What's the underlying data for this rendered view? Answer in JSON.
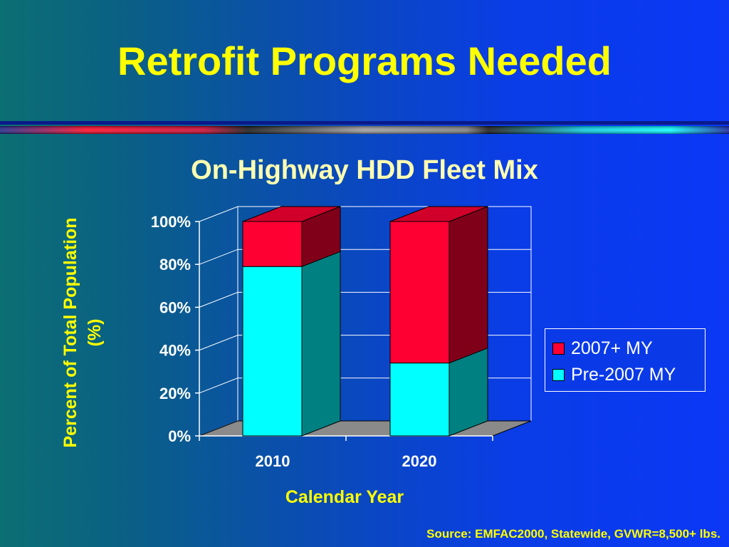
{
  "slide": {
    "title": "Retrofit Programs Needed",
    "source": "Source: EMFAC2000, Statewide, GVWR=8,500+ lbs."
  },
  "colors": {
    "background_left": "#0c6f73",
    "background_right": "#0b37f6",
    "title": "#ffff00",
    "series_2007_plus": "#ff0033",
    "series_pre_2007": "#00ffff",
    "floor": "#8a8a8a",
    "gridline": "#ffffff"
  },
  "chart_data": {
    "type": "bar",
    "stacked": true,
    "three_d": true,
    "title": "On-Highway HDD Fleet Mix",
    "xlabel": "Calendar Year",
    "ylabel": "Percent of Total Population (%)",
    "categories": [
      "2010",
      "2020"
    ],
    "series": [
      {
        "name": "Pre-2007 MY",
        "values": [
          79,
          34
        ]
      },
      {
        "name": "2007+ MY",
        "values": [
          21,
          66
        ]
      }
    ],
    "ylim": [
      0,
      100
    ],
    "y_ticks": [
      "0%",
      "20%",
      "40%",
      "60%",
      "80%",
      "100%"
    ],
    "grid": true,
    "legend_position": "right",
    "legend_order": [
      "2007+ MY",
      "Pre-2007 MY"
    ]
  }
}
